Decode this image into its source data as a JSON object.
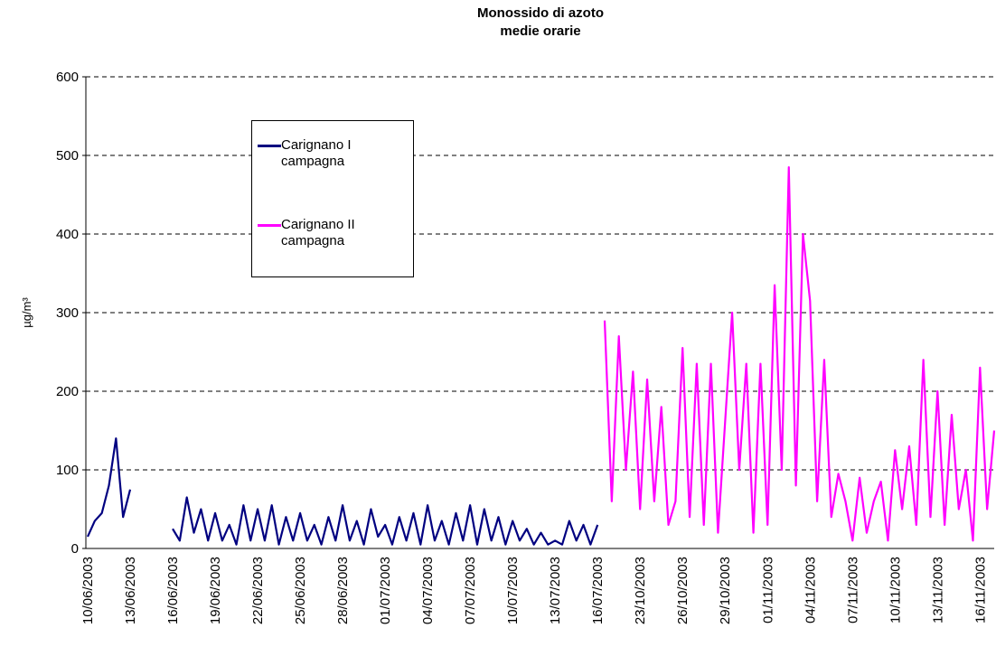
{
  "chart_data": {
    "type": "line",
    "title": "Monossido di azoto",
    "subtitle": "medie orarie",
    "y_label": "µg/m³",
    "ylim": [
      0,
      600
    ],
    "yticks": [
      0,
      100,
      200,
      300,
      400,
      500,
      600
    ],
    "grid": true,
    "categories": [
      "10/06/2003",
      null,
      null,
      null,
      null,
      null,
      "13/06/2003",
      null,
      null,
      null,
      null,
      null,
      "16/06/2003",
      null,
      null,
      null,
      null,
      null,
      "19/06/2003",
      null,
      null,
      null,
      null,
      null,
      "22/06/2003",
      null,
      null,
      null,
      null,
      null,
      "25/06/2003",
      null,
      null,
      null,
      null,
      null,
      "28/06/2003",
      null,
      null,
      null,
      null,
      null,
      "01/07/2003",
      null,
      null,
      null,
      null,
      null,
      "04/07/2003",
      null,
      null,
      null,
      null,
      null,
      "07/07/2003",
      null,
      null,
      null,
      null,
      null,
      "10/07/2003",
      null,
      null,
      null,
      null,
      null,
      "13/07/2003",
      null,
      null,
      null,
      null,
      null,
      "16/07/2003",
      null,
      null,
      null,
      null,
      null,
      "23/10/2003",
      null,
      null,
      null,
      null,
      null,
      "26/10/2003",
      null,
      null,
      null,
      null,
      null,
      "29/10/2003",
      null,
      null,
      null,
      null,
      null,
      "01/11/2003",
      null,
      null,
      null,
      null,
      null,
      "04/11/2003",
      null,
      null,
      null,
      null,
      null,
      "07/11/2003",
      null,
      null,
      null,
      null,
      null,
      "10/11/2003",
      null,
      null,
      null,
      null,
      null,
      "13/11/2003",
      null,
      null,
      null,
      null,
      null,
      "16/11/2003",
      null,
      null
    ],
    "series": [
      {
        "name": "Carignano I campagna",
        "color": "#000080",
        "values": [
          15,
          35,
          45,
          80,
          140,
          40,
          75,
          null,
          null,
          null,
          null,
          null,
          25,
          10,
          65,
          20,
          50,
          10,
          45,
          10,
          30,
          5,
          55,
          10,
          50,
          10,
          55,
          5,
          40,
          10,
          45,
          10,
          30,
          5,
          40,
          10,
          55,
          10,
          35,
          5,
          50,
          15,
          30,
          5,
          40,
          10,
          45,
          5,
          55,
          10,
          35,
          5,
          45,
          10,
          55,
          5,
          50,
          10,
          40,
          5,
          35,
          10,
          25,
          5,
          20,
          5,
          10,
          5,
          35,
          10,
          30,
          5,
          30,
          null,
          null,
          null,
          null,
          null,
          null,
          null,
          null,
          null,
          null,
          null,
          null,
          null,
          null,
          null,
          null,
          null,
          null,
          null,
          null,
          null,
          null,
          null,
          null,
          null,
          null,
          null,
          null,
          null,
          null,
          null,
          null,
          null,
          null,
          null,
          null,
          null,
          null,
          null,
          null,
          null,
          null,
          null,
          null,
          null,
          null,
          null,
          null,
          null,
          null,
          null,
          null,
          null,
          null,
          null,
          null
        ]
      },
      {
        "name": "Carignano II campagna",
        "color": "#ff00ff",
        "values": [
          null,
          null,
          null,
          null,
          null,
          null,
          null,
          null,
          null,
          null,
          null,
          null,
          null,
          null,
          null,
          null,
          null,
          null,
          null,
          null,
          null,
          null,
          null,
          null,
          null,
          null,
          null,
          null,
          null,
          null,
          null,
          null,
          null,
          null,
          null,
          null,
          null,
          null,
          null,
          null,
          null,
          null,
          null,
          null,
          null,
          null,
          null,
          null,
          null,
          null,
          null,
          null,
          null,
          null,
          null,
          null,
          null,
          null,
          null,
          null,
          null,
          null,
          null,
          null,
          null,
          null,
          null,
          null,
          null,
          null,
          null,
          null,
          null,
          290,
          60,
          270,
          100,
          225,
          50,
          215,
          60,
          180,
          30,
          60,
          255,
          40,
          235,
          30,
          235,
          20,
          160,
          300,
          100,
          235,
          20,
          235,
          30,
          335,
          100,
          485,
          80,
          400,
          315,
          60,
          240,
          40,
          95,
          60,
          10,
          90,
          20,
          60,
          85,
          10,
          125,
          50,
          130,
          30,
          240,
          40,
          200,
          30,
          170,
          50,
          100,
          10,
          230,
          50,
          150
        ]
      }
    ]
  }
}
